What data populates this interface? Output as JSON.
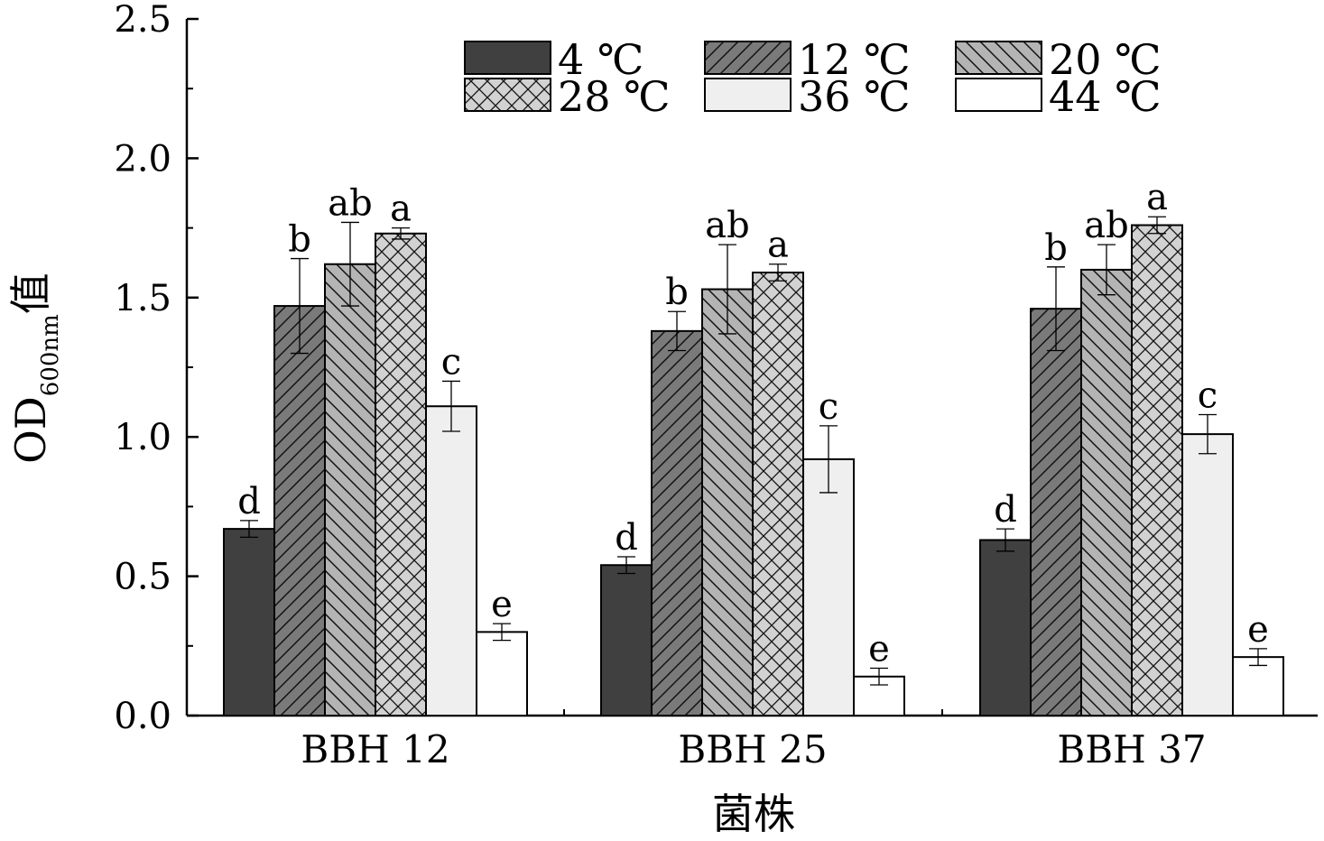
{
  "chart_data": {
    "type": "bar",
    "categories": [
      "BBH 12",
      "BBH 25",
      "BBH 37"
    ],
    "series": [
      {
        "name": "4 ℃",
        "values": [
          0.67,
          0.54,
          0.63
        ],
        "errors": [
          0.03,
          0.03,
          0.04
        ],
        "labels": [
          "d",
          "d",
          "d"
        ],
        "fill": "#404040",
        "pattern": "solid"
      },
      {
        "name": "12 ℃",
        "values": [
          1.47,
          1.38,
          1.46
        ],
        "errors": [
          0.17,
          0.07,
          0.15
        ],
        "labels": [
          "b",
          "b",
          "b"
        ],
        "fill": "#7a7a7a",
        "pattern": "diag-up"
      },
      {
        "name": "20 ℃",
        "values": [
          1.62,
          1.53,
          1.6
        ],
        "errors": [
          0.15,
          0.16,
          0.09
        ],
        "labels": [
          "ab",
          "ab",
          "ab"
        ],
        "fill": "#b4b4b4",
        "pattern": "diag-down"
      },
      {
        "name": "28 ℃",
        "values": [
          1.73,
          1.59,
          1.76
        ],
        "errors": [
          0.02,
          0.03,
          0.03
        ],
        "labels": [
          "a",
          "a",
          "a"
        ],
        "fill": "#d2d2d2",
        "pattern": "cross"
      },
      {
        "name": "36 ℃",
        "values": [
          1.11,
          0.92,
          1.01
        ],
        "errors": [
          0.09,
          0.12,
          0.07
        ],
        "labels": [
          "c",
          "c",
          "c"
        ],
        "fill": "#efefef",
        "pattern": "solid"
      },
      {
        "name": "44 ℃",
        "values": [
          0.3,
          0.14,
          0.21
        ],
        "errors": [
          0.03,
          0.03,
          0.03
        ],
        "labels": [
          "e",
          "e",
          "e"
        ],
        "fill": "#ffffff",
        "pattern": "solid"
      }
    ],
    "ylim": [
      0,
      2.5
    ],
    "yticks": [
      "0.0",
      "0.5",
      "1.0",
      "1.5",
      "2.0",
      "2.5"
    ],
    "xlabel": "菌株",
    "ylabel": {
      "main": "OD",
      "subscript": "600nm",
      "suffix": "值"
    },
    "legend_position": "top",
    "grid": false
  }
}
